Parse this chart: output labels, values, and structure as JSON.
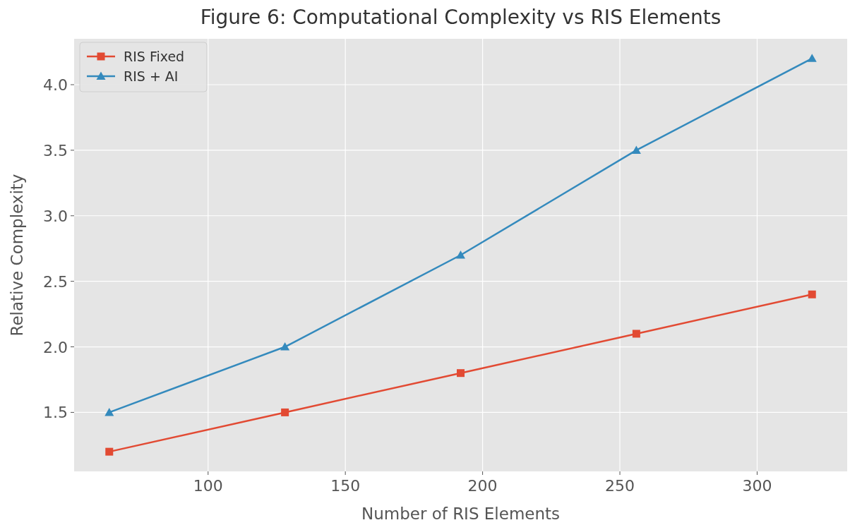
{
  "chart_data": {
    "type": "line",
    "title": "Figure 6: Computational Complexity vs RIS Elements",
    "xlabel": "Number of RIS Elements",
    "ylabel": "Relative Complexity",
    "x": [
      64,
      128,
      192,
      256,
      320
    ],
    "series": [
      {
        "name": "RIS Fixed",
        "color": "#e24a33",
        "marker": "square",
        "values": [
          1.2,
          1.5,
          1.8,
          2.1,
          2.4
        ]
      },
      {
        "name": "RIS + AI",
        "color": "#348abd",
        "marker": "triangle",
        "values": [
          1.5,
          2.0,
          2.7,
          3.5,
          4.2
        ]
      }
    ],
    "xlim": [
      51.2,
      332.8
    ],
    "xticks": [
      100,
      150,
      200,
      250,
      300
    ],
    "ylim": [
      1.05,
      4.35
    ],
    "yticks": [
      1.5,
      {
        "value": 2,
        "label": "2.0"
      },
      2.5,
      {
        "value": 3,
        "label": "3.0"
      },
      3.5,
      {
        "value": 4,
        "label": "4.0"
      }
    ],
    "grid": true,
    "legend": "top left",
    "line_style": "solid"
  }
}
